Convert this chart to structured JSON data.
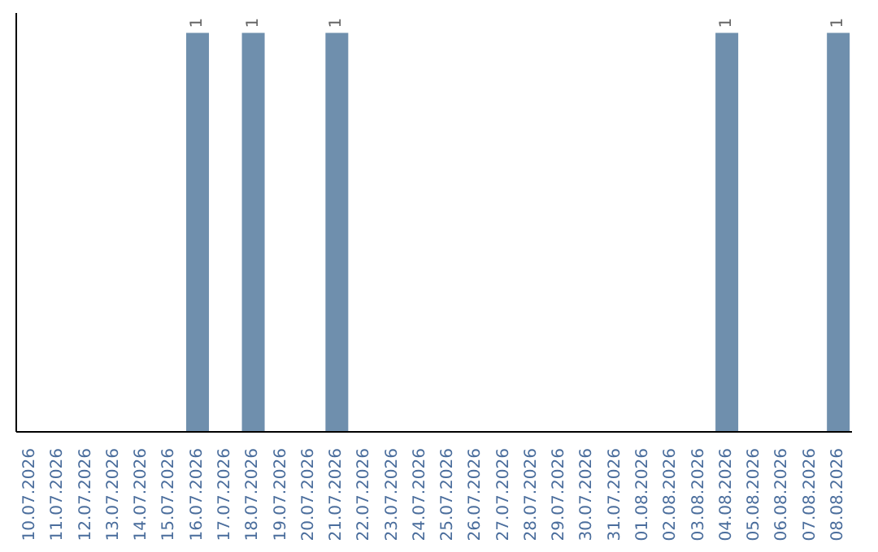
{
  "chart_data": {
    "type": "bar",
    "categories": [
      "10.07.2026",
      "11.07.2026",
      "12.07.2026",
      "13.07.2026",
      "14.07.2026",
      "15.07.2026",
      "16.07.2026",
      "17.07.2026",
      "18.07.2026",
      "19.07.2026",
      "20.07.2026",
      "21.07.2026",
      "22.07.2026",
      "23.07.2026",
      "24.07.2026",
      "25.07.2026",
      "26.07.2026",
      "27.07.2026",
      "28.07.2026",
      "29.07.2026",
      "30.07.2026",
      "31.07.2026",
      "01.08.2026",
      "02.08.2026",
      "03.08.2026",
      "04.08.2026",
      "05.08.2026",
      "06.08.2026",
      "07.08.2026",
      "08.08.2026"
    ],
    "values": [
      null,
      null,
      null,
      null,
      null,
      null,
      1,
      null,
      1,
      null,
      null,
      1,
      null,
      null,
      null,
      null,
      null,
      null,
      null,
      null,
      null,
      null,
      null,
      null,
      null,
      1,
      null,
      null,
      null,
      1
    ],
    "value_labels": [
      null,
      null,
      null,
      null,
      null,
      null,
      "1",
      null,
      "1",
      null,
      null,
      "1",
      null,
      null,
      null,
      null,
      null,
      null,
      null,
      null,
      null,
      null,
      null,
      null,
      null,
      "1",
      null,
      null,
      null,
      "1"
    ],
    "color": "#6f8fad",
    "grid": false,
    "legend": false
  }
}
